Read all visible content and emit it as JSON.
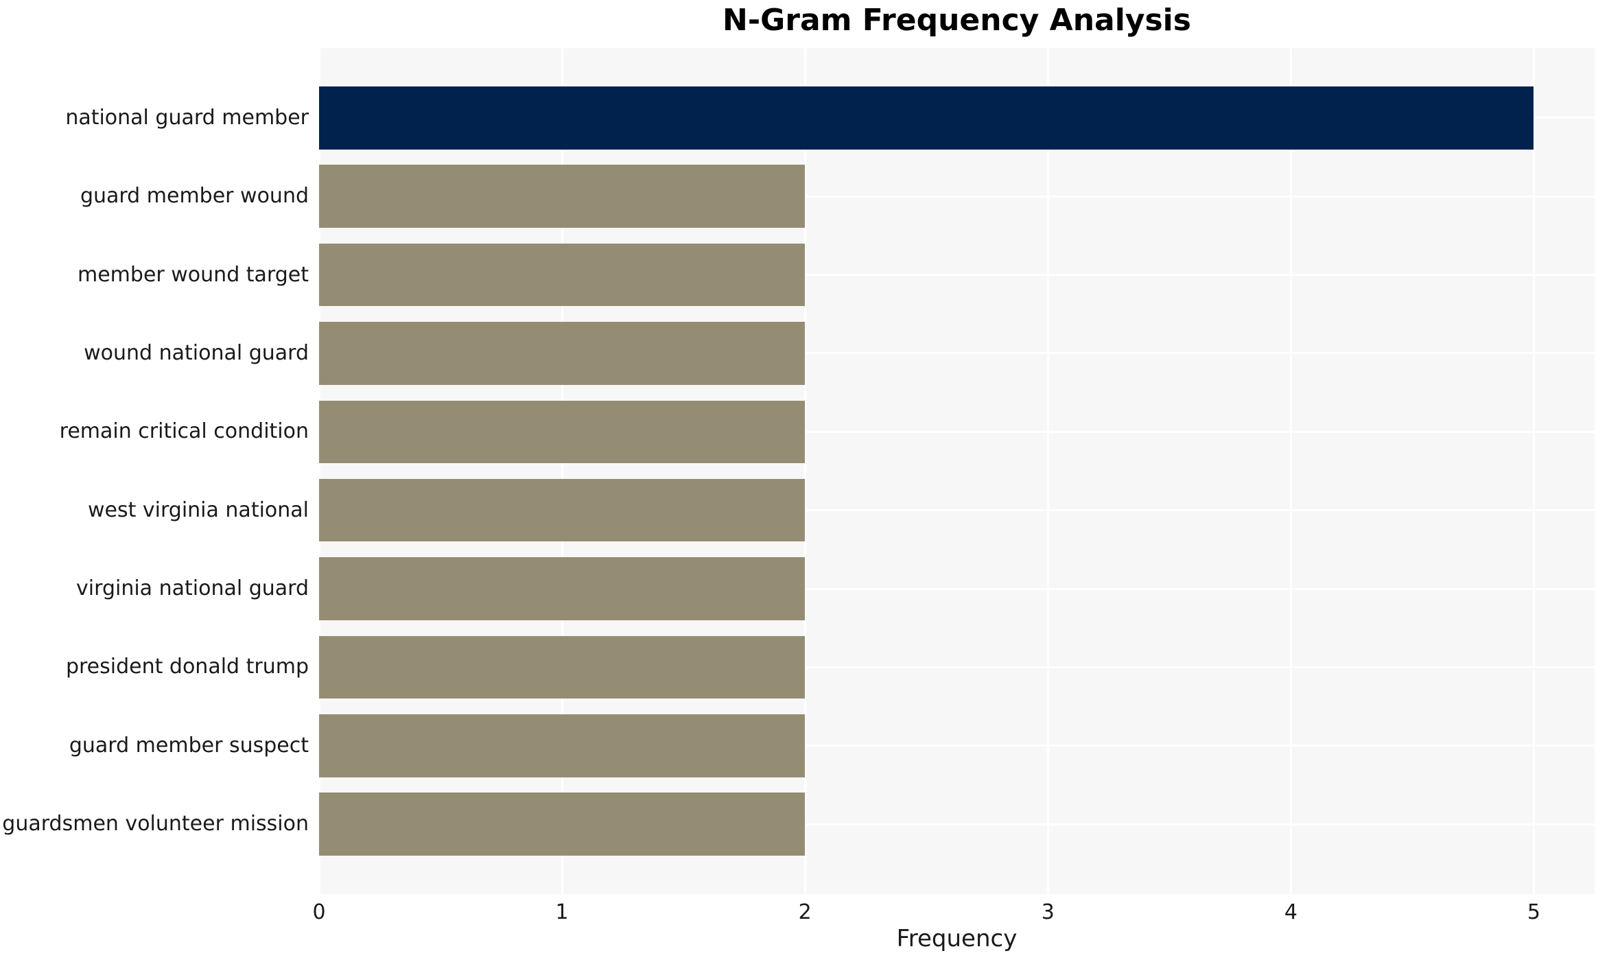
{
  "chart_data": {
    "type": "bar",
    "orientation": "horizontal",
    "title": "N-Gram Frequency Analysis",
    "xlabel": "Frequency",
    "ylabel": "",
    "categories": [
      "national guard member",
      "guard member wound",
      "member wound target",
      "wound national guard",
      "remain critical condition",
      "west virginia national",
      "virginia national guard",
      "president donald trump",
      "guard member suspect",
      "guardsmen volunteer mission"
    ],
    "values": [
      5,
      2,
      2,
      2,
      2,
      2,
      2,
      2,
      2,
      2
    ],
    "x_ticks": [
      0,
      1,
      2,
      3,
      4,
      5
    ],
    "xlim": [
      0,
      5.25
    ],
    "grid": true,
    "legend": "none",
    "bar_colors": [
      "#02224e",
      "#948d73",
      "#948d73",
      "#948d73",
      "#948d73",
      "#948d73",
      "#948d73",
      "#948d73",
      "#948d73",
      "#948d73"
    ],
    "plot_background": "#f7f7f7",
    "grid_color": "#ffffff",
    "text_color": "#1a1a1a"
  }
}
